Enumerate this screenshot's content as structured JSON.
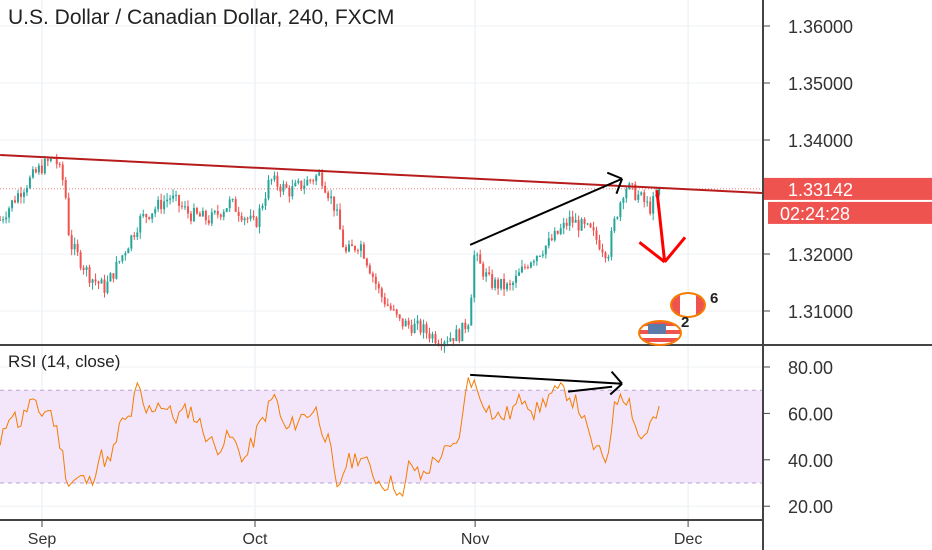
{
  "header": {
    "title": "U.S. Dollar / Canadian Dollar, 240, FXCM"
  },
  "rsi_pane": {
    "title": "RSI (14, close)"
  },
  "price_label": {
    "value": "1.33142",
    "countdown": "02:24:28"
  },
  "events": {
    "ca_count": "6",
    "us_count": "2"
  },
  "colors": {
    "up": "#26a69a",
    "down": "#ef5350",
    "rsi": "#f57c00",
    "band": "#f3e6fb",
    "trend": "#b71c1c",
    "label": "#ef5350"
  },
  "chart_data": [
    {
      "type": "candlestick",
      "title": "U.S. Dollar / Canadian Dollar, 240, FXCM",
      "x_unit": "days from Sep 1",
      "xlim": [
        -6,
        101
      ],
      "ylim": [
        1.3045,
        1.3645
      ],
      "y_ticks": [
        "1.36000",
        "1.35000",
        "1.34000",
        "1.32000",
        "1.31000"
      ],
      "y_tick_values": [
        1.36,
        1.35,
        1.34,
        1.32,
        1.31
      ],
      "x_ticks": [
        "Sep",
        "Oct",
        "Nov",
        "Dec"
      ],
      "x_tick_values": [
        0,
        30,
        61,
        91
      ],
      "last_price": 1.33142,
      "close_path": [
        [
          -5.9,
          1.326
        ],
        [
          -3.1,
          1.331
        ],
        [
          -0.3,
          1.335
        ],
        [
          1.8,
          1.337
        ],
        [
          3.2,
          1.332
        ],
        [
          3.9,
          1.322
        ],
        [
          6.8,
          1.316
        ],
        [
          8.9,
          1.314
        ],
        [
          11,
          1.319
        ],
        [
          13.8,
          1.326
        ],
        [
          18,
          1.33
        ],
        [
          20.8,
          1.327
        ],
        [
          23.7,
          1.326
        ],
        [
          26.5,
          1.329
        ],
        [
          30,
          1.325
        ],
        [
          32.1,
          1.333
        ],
        [
          34.9,
          1.331
        ],
        [
          39.2,
          1.334
        ],
        [
          41.3,
          1.328
        ],
        [
          42.7,
          1.32
        ],
        [
          44.8,
          1.322
        ],
        [
          47.6,
          1.313
        ],
        [
          50.4,
          1.308
        ],
        [
          53.2,
          1.307
        ],
        [
          56,
          1.305
        ],
        [
          58.9,
          1.306
        ],
        [
          60.3,
          1.309
        ],
        [
          60.7,
          1.32
        ],
        [
          63.1,
          1.315
        ],
        [
          65.9,
          1.314
        ],
        [
          68.7,
          1.319
        ],
        [
          71.5,
          1.322
        ],
        [
          74.4,
          1.326
        ],
        [
          77.2,
          1.324
        ],
        [
          79.7,
          1.32
        ],
        [
          80.7,
          1.326
        ],
        [
          82.1,
          1.332
        ],
        [
          84.2,
          1.33
        ],
        [
          85.6,
          1.328
        ],
        [
          87,
          1.331
        ]
      ],
      "annotations": [
        {
          "type": "trendline",
          "color": "#b71c1c",
          "from": [
            -5.9,
            1.33737
          ],
          "to": [
            101.4,
            1.3307
          ]
        },
        {
          "type": "arrow",
          "color": "#000000",
          "from": [
            60.3,
            1.3216
          ],
          "to": [
            81.7,
            1.3332
          ]
        },
        {
          "type": "arrow",
          "color": "#ff0000",
          "from": [
            86.6,
            1.3312
          ],
          "to": [
            87.7,
            1.3186
          ]
        }
      ]
    },
    {
      "type": "line",
      "title": "RSI (14, close)",
      "ylim": [
        15,
        88
      ],
      "y_ticks": [
        "80.00",
        "60.00",
        "40.00",
        "20.00"
      ],
      "y_tick_values": [
        80,
        60,
        40,
        20
      ],
      "bands": [
        30,
        70
      ],
      "values": [
        [
          -5.9,
          45
        ],
        [
          -4.5,
          62
        ],
        [
          -3.1,
          55
        ],
        [
          -1.7,
          65
        ],
        [
          -0.3,
          60
        ],
        [
          1.1,
          62
        ],
        [
          2.5,
          48
        ],
        [
          3.7,
          30
        ],
        [
          5.4,
          32
        ],
        [
          6.8,
          30
        ],
        [
          8.2,
          42
        ],
        [
          9.6,
          38
        ],
        [
          11,
          55
        ],
        [
          12.4,
          58
        ],
        [
          13.5,
          72
        ],
        [
          14.5,
          60
        ],
        [
          16.6,
          65
        ],
        [
          18.7,
          58
        ],
        [
          20.8,
          62
        ],
        [
          22.3,
          55
        ],
        [
          24.4,
          45
        ],
        [
          26.5,
          50
        ],
        [
          28.6,
          40
        ],
        [
          30.7,
          55
        ],
        [
          32.8,
          68
        ],
        [
          34.2,
          52
        ],
        [
          36.3,
          58
        ],
        [
          38.5,
          62
        ],
        [
          40.6,
          45
        ],
        [
          41.5,
          25
        ],
        [
          42.7,
          38
        ],
        [
          44.8,
          42
        ],
        [
          47.6,
          30
        ],
        [
          49.7,
          30
        ],
        [
          50.8,
          22
        ],
        [
          51.8,
          40
        ],
        [
          53.2,
          32
        ],
        [
          56,
          42
        ],
        [
          58.2,
          45
        ],
        [
          59.3,
          58
        ],
        [
          60,
          77
        ],
        [
          61.7,
          68
        ],
        [
          63.8,
          58
        ],
        [
          65.9,
          60
        ],
        [
          68,
          68
        ],
        [
          69.4,
          60
        ],
        [
          71.5,
          68
        ],
        [
          73.7,
          70
        ],
        [
          75.8,
          62
        ],
        [
          77.2,
          48
        ],
        [
          78.6,
          42
        ],
        [
          79.6,
          40
        ],
        [
          80.3,
          58
        ],
        [
          81.4,
          70
        ],
        [
          82.8,
          65
        ],
        [
          84.2,
          48
        ],
        [
          85.6,
          55
        ],
        [
          87,
          60
        ]
      ],
      "annotations": [
        {
          "type": "arrow",
          "color": "#000000",
          "from": [
            60.3,
            76.6
          ],
          "to": [
            81.7,
            72.8
          ]
        },
        {
          "type": "line",
          "color": "#000000",
          "from": [
            74.1,
            69.4
          ],
          "to": [
            80.3,
            71.5
          ]
        }
      ]
    }
  ]
}
